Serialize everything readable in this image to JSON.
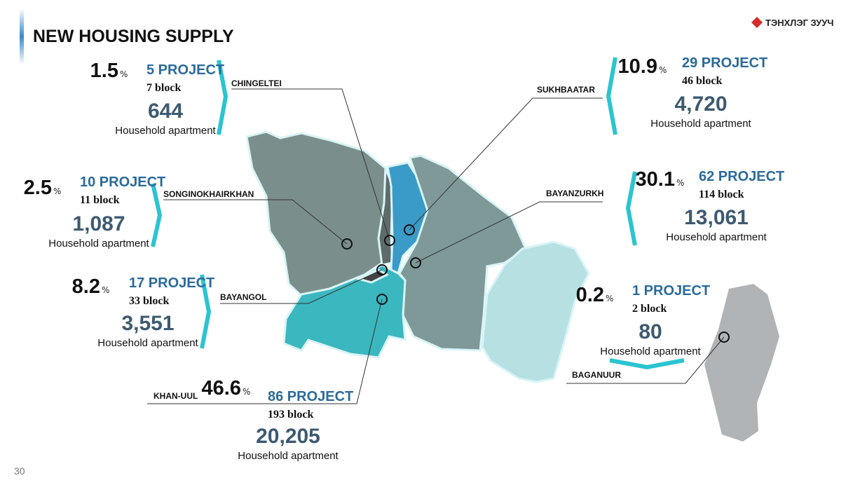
{
  "header": {
    "title": "NEW HOUSING SUPPLY",
    "logo": "ТЭНХЛЭГ ЗУУЧ"
  },
  "page_number": "30",
  "districts": [
    {
      "name": "CHINGELTEI",
      "percent": "1.5",
      "unit": "%",
      "projects": "5 PROJECT",
      "blocks": "7 block",
      "households": "644",
      "household_label": "Household apartment"
    },
    {
      "name": "SUKHBAATAR",
      "percent": "10.9",
      "unit": "%",
      "projects": "29 PROJECT",
      "blocks": "46 block",
      "households": "4,720",
      "household_label": "Household apartment"
    },
    {
      "name": "SONGINOKHAIRKHAN",
      "percent": "2.5",
      "unit": "%",
      "projects": "10 PROJECT",
      "blocks": "11 block",
      "households": "1,087",
      "household_label": "Household apartment"
    },
    {
      "name": "BAYANZURKH",
      "percent": "30.1",
      "unit": "%",
      "projects": "62 PROJECT",
      "blocks": "114 block",
      "households": "13,061",
      "household_label": "Household apartment"
    },
    {
      "name": "BAYANGOL",
      "percent": "8.2",
      "unit": "%",
      "projects": "17 PROJECT",
      "blocks": "33 block",
      "households": "3,551",
      "household_label": "Household apartment"
    },
    {
      "name": "KHAN-UUL",
      "percent": "46.6",
      "unit": "%",
      "projects": "86 PROJECT",
      "blocks": "193 block",
      "households": "20,205",
      "household_label": "Household apartment"
    },
    {
      "name": "BAGANUUR",
      "percent": "0.2",
      "unit": "%",
      "projects": "1 PROJECT",
      "blocks": "2 block",
      "households": "80",
      "household_label": "Household apartment"
    }
  ]
}
